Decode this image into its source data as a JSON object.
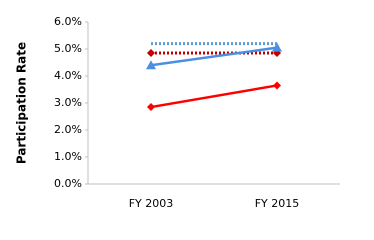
{
  "chart_data": {
    "type": "line",
    "y_label": "Participation Rate",
    "categories": [
      "FY 2003",
      "FY 2015"
    ],
    "series": [
      {
        "color": "#5b9bd5",
        "line_style": "dotted",
        "marker": "none",
        "values": [
          5.2,
          5.2
        ]
      },
      {
        "color": "#c00000",
        "line_style": "dotted",
        "marker": "diamond",
        "values": [
          4.85,
          4.85
        ]
      },
      {
        "color": "#4a90e2",
        "line_style": "solid",
        "marker": "triangle",
        "values": [
          4.4,
          5.05
        ]
      },
      {
        "color": "#ff0000",
        "line_style": "solid",
        "marker": "diamond",
        "values": [
          2.85,
          3.65
        ]
      }
    ],
    "ylim": [
      0,
      6
    ],
    "yticks": [
      {
        "value": 0,
        "label": "0.0%"
      },
      {
        "value": 1,
        "label": "1.0%"
      },
      {
        "value": 2,
        "label": "2.0%"
      },
      {
        "value": 3,
        "label": "3.0%"
      },
      {
        "value": 4,
        "label": "4.0%"
      },
      {
        "value": 5,
        "label": "5.0%"
      },
      {
        "value": 6,
        "label": "6.0%"
      }
    ],
    "grid": false
  }
}
